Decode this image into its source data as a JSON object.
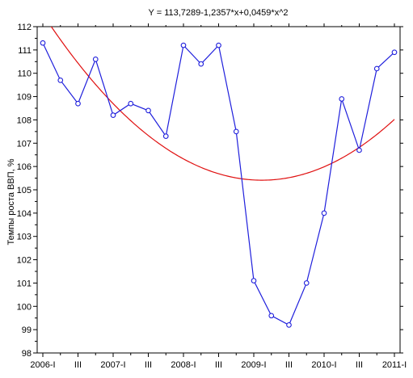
{
  "chart_data": {
    "type": "line",
    "title": "Y = 113,7289-1,2357*x+0,0459*x^2",
    "xlabel": "",
    "ylabel": "Темпы роста ВВП, %",
    "x_tick_labels": [
      "2006-I",
      "III",
      "2007-I",
      "III",
      "2008-I",
      "III",
      "2009-I",
      "III",
      "2010-I",
      "III",
      "2011-I"
    ],
    "x": [
      1,
      2,
      3,
      4,
      5,
      6,
      7,
      8,
      9,
      10,
      11,
      12,
      13,
      14,
      15,
      16,
      17,
      18,
      19,
      20,
      21
    ],
    "xlim": [
      1,
      21
    ],
    "ylim": [
      98,
      112
    ],
    "y_ticks": [
      98,
      99,
      100,
      101,
      102,
      103,
      104,
      105,
      106,
      107,
      108,
      109,
      110,
      111,
      112
    ],
    "grid": false,
    "series": [
      {
        "type": "line",
        "markers": true,
        "color": "#1f1fdc",
        "values": [
          111.3,
          109.7,
          108.7,
          110.6,
          108.2,
          108.7,
          108.4,
          107.3,
          111.2,
          110.4,
          111.2,
          107.5,
          101.1,
          99.6,
          99.2,
          101.0,
          104.0,
          108.9,
          106.7,
          110.2,
          110.9
        ]
      },
      {
        "type": "fit",
        "color": "#e01010",
        "coefficients": [
          113.7289,
          -1.2357,
          0.0459
        ]
      }
    ]
  }
}
